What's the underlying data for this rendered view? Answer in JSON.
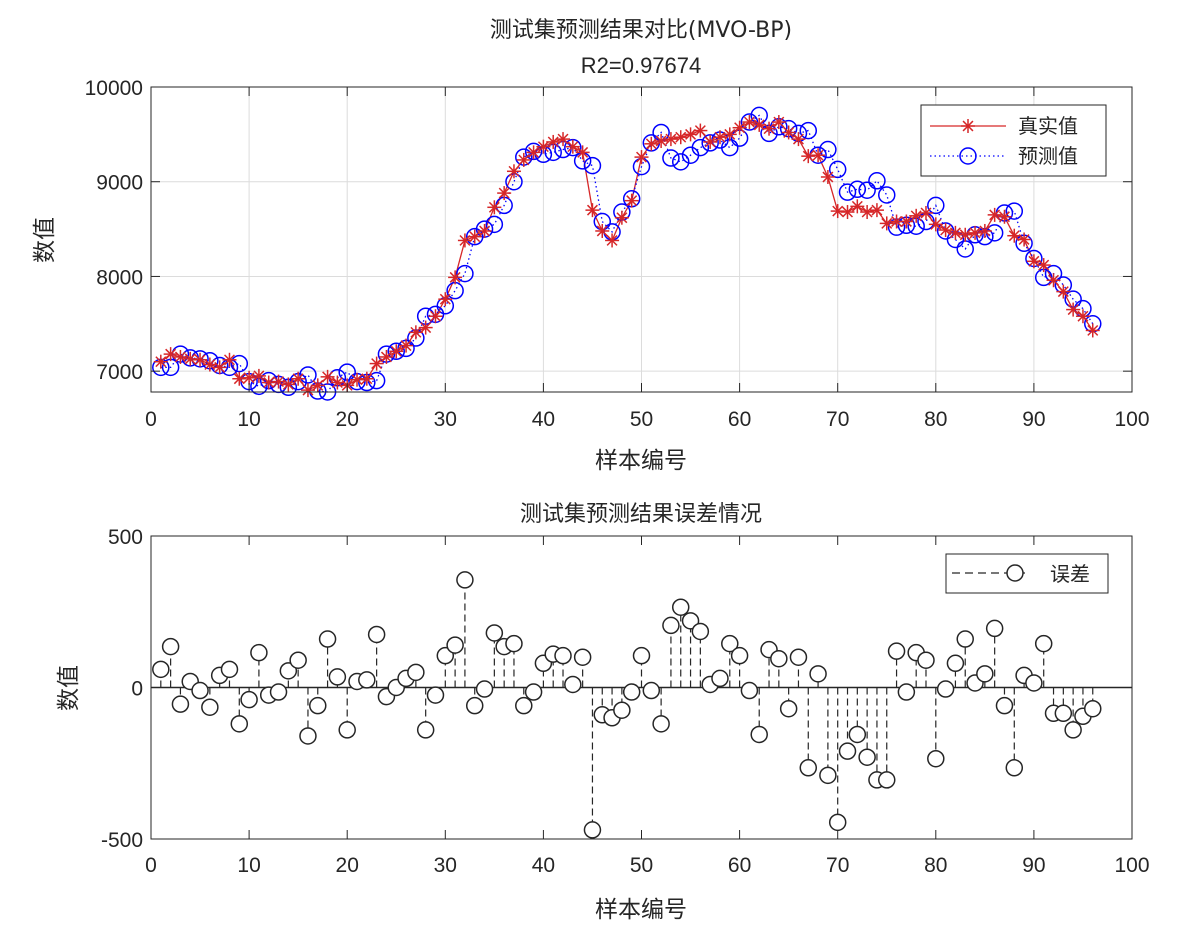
{
  "chart_data": [
    {
      "type": "line",
      "title": "测试集预测结果对比(MVO-BP)",
      "subtitle": "R2=0.97674",
      "xlabel": "样本编号",
      "ylabel": "数值",
      "xlim": [
        0,
        100
      ],
      "ylim": [
        6780,
        10000
      ],
      "xticks": [
        "0",
        "10",
        "20",
        "30",
        "40",
        "50",
        "60",
        "70",
        "80",
        "90",
        "100"
      ],
      "yticks": [
        "7000",
        "8000",
        "9000",
        "10000"
      ],
      "grid": true,
      "legend_position": "top-right",
      "x": [
        1,
        2,
        3,
        4,
        5,
        6,
        7,
        8,
        9,
        10,
        11,
        12,
        13,
        14,
        15,
        16,
        17,
        18,
        19,
        20,
        21,
        22,
        23,
        24,
        25,
        26,
        27,
        28,
        29,
        30,
        31,
        32,
        33,
        34,
        35,
        36,
        37,
        38,
        39,
        40,
        41,
        42,
        43,
        44,
        45,
        46,
        47,
        48,
        49,
        50,
        51,
        52,
        53,
        54,
        55,
        56,
        57,
        58,
        59,
        60,
        61,
        62,
        63,
        64,
        65,
        66,
        67,
        68,
        69,
        70,
        71,
        72,
        73,
        74,
        75,
        76,
        77,
        78,
        79,
        80,
        81,
        82,
        83,
        84,
        85,
        86,
        87,
        88,
        89,
        90,
        91,
        92,
        93,
        94,
        95,
        96
      ],
      "series": [
        {
          "name": "真实值",
          "color": "#d62728",
          "marker": "asterisk",
          "line": "solid",
          "values": [
            7100,
            7180,
            7150,
            7130,
            7120,
            7070,
            7040,
            7120,
            6920,
            6930,
            6950,
            6880,
            6890,
            6860,
            6920,
            6800,
            6850,
            6940,
            6880,
            6850,
            6910,
            6920,
            7080,
            7150,
            7210,
            7270,
            7410,
            7460,
            7580,
            7760,
            7990,
            8380,
            8420,
            8480,
            8730,
            8880,
            9110,
            9230,
            9310,
            9370,
            9420,
            9450,
            9370,
            9310,
            8700,
            8480,
            8380,
            8620,
            8800,
            9260,
            9400,
            9430,
            9450,
            9470,
            9500,
            9540,
            9420,
            9470,
            9500,
            9570,
            9630,
            9600,
            9560,
            9630,
            9520,
            9450,
            9270,
            9280,
            9050,
            8690,
            8680,
            8740,
            8680,
            8700,
            8560,
            8580,
            8580,
            8640,
            8670,
            8550,
            8490,
            8460,
            8440,
            8460,
            8480,
            8650,
            8630,
            8430,
            8390,
            8160,
            8120,
            7960,
            7840,
            7650,
            7580,
            7430
          ]
        },
        {
          "name": "预测值",
          "color": "#0000ff",
          "marker": "circle",
          "line": "dotted",
          "values": [
            7040,
            7040,
            7180,
            7140,
            7130,
            7110,
            7060,
            7040,
            7080,
            6890,
            6840,
            6900,
            6860,
            6830,
            6890,
            6960,
            6790,
            6780,
            6930,
            6990,
            6890,
            6880,
            6900,
            7180,
            7210,
            7240,
            7350,
            7580,
            7600,
            7690,
            7850,
            8030,
            8420,
            8500,
            8550,
            8750,
            9000,
            9260,
            9320,
            9290,
            9310,
            9340,
            9360,
            9220,
            9170,
            8580,
            8470,
            8680,
            8820,
            9160,
            9410,
            9520,
            9250,
            9210,
            9280,
            9360,
            9410,
            9440,
            9360,
            9460,
            9630,
            9700,
            9510,
            9580,
            9560,
            9510,
            9540,
            9280,
            9340,
            9130,
            8890,
            8920,
            8910,
            9010,
            8860,
            8520,
            8540,
            8530,
            8580,
            8750,
            8480,
            8390,
            8290,
            8440,
            8420,
            8460,
            8670,
            8690,
            8350,
            8190,
            7990,
            8030,
            7910,
            7760,
            7660,
            7500
          ]
        }
      ]
    },
    {
      "type": "stem",
      "title": "测试集预测结果误差情况",
      "xlabel": "样本编号",
      "ylabel": "数值",
      "xlim": [
        0,
        100
      ],
      "ylim": [
        -500,
        500
      ],
      "xticks": [
        "0",
        "10",
        "20",
        "30",
        "40",
        "50",
        "60",
        "70",
        "80",
        "90",
        "100"
      ],
      "yticks": [
        "500",
        "0",
        "-500"
      ],
      "grid": false,
      "legend_position": "top-right",
      "series": [
        {
          "name": "误差",
          "color": "#262626",
          "marker": "circle",
          "line": "dashed",
          "values": [
            60,
            135,
            -55,
            20,
            -10,
            -65,
            40,
            60,
            -120,
            -40,
            115,
            -25,
            -15,
            55,
            90,
            -160,
            -60,
            160,
            35,
            -140,
            20,
            25,
            175,
            -30,
            0,
            30,
            50,
            -140,
            -25,
            105,
            140,
            355,
            -60,
            -5,
            180,
            135,
            145,
            -60,
            -15,
            80,
            110,
            105,
            10,
            100,
            -470,
            -90,
            -100,
            -75,
            -15,
            105,
            -10,
            -120,
            205,
            265,
            220,
            185,
            10,
            30,
            145,
            105,
            -10,
            -155,
            125,
            95,
            -70,
            100,
            -265,
            45,
            -290,
            -445,
            -210,
            -155,
            -230,
            -305,
            -305,
            120,
            -15,
            115,
            90,
            -235,
            -5,
            80,
            160,
            15,
            45,
            195,
            -60,
            -265,
            40,
            15,
            145,
            -85,
            -85,
            -140,
            -95,
            -70
          ]
        }
      ]
    }
  ]
}
